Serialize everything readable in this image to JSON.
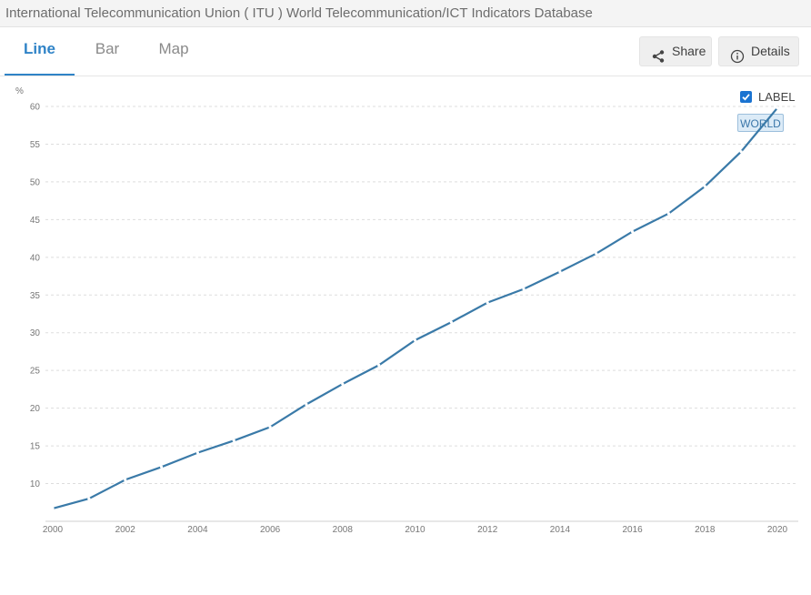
{
  "header": {
    "source_title": "International Telecommunication Union ( ITU ) World Telecommunication/ICT Indicators Database"
  },
  "tabs": [
    {
      "label": "Line",
      "active": true
    },
    {
      "label": "Bar",
      "active": false
    },
    {
      "label": "Map",
      "active": false
    }
  ],
  "toolbar": {
    "share_label": "Share",
    "details_label": "Details"
  },
  "legend": {
    "checkbox_label": "LABEL",
    "checked": true,
    "series_tag": "WORLD"
  },
  "colors": {
    "line": "#3a7aa8",
    "accent": "#2f83c7",
    "grid": "#dddddd"
  },
  "chart_data": {
    "type": "line",
    "ylabel": "%",
    "xlabel": "",
    "title": "",
    "ylim": [
      5,
      60
    ],
    "yticks": [
      10,
      15,
      20,
      25,
      30,
      35,
      40,
      45,
      50,
      55,
      60
    ],
    "xlim": [
      2000,
      2020
    ],
    "xticks": [
      2000,
      2002,
      2004,
      2006,
      2008,
      2010,
      2012,
      2014,
      2016,
      2018,
      2020
    ],
    "grid": true,
    "series": [
      {
        "name": "WORLD",
        "x": [
          2000,
          2001,
          2002,
          2003,
          2004,
          2005,
          2006,
          2007,
          2008,
          2009,
          2010,
          2011,
          2012,
          2013,
          2014,
          2015,
          2016,
          2017,
          2018,
          2019,
          2020
        ],
        "values": [
          6.7,
          8.0,
          10.5,
          12.2,
          14.1,
          15.7,
          17.5,
          20.5,
          23.2,
          25.7,
          29.0,
          31.4,
          34.0,
          35.8,
          38.1,
          40.5,
          43.4,
          45.8,
          49.4,
          54.0,
          59.8
        ]
      }
    ]
  }
}
